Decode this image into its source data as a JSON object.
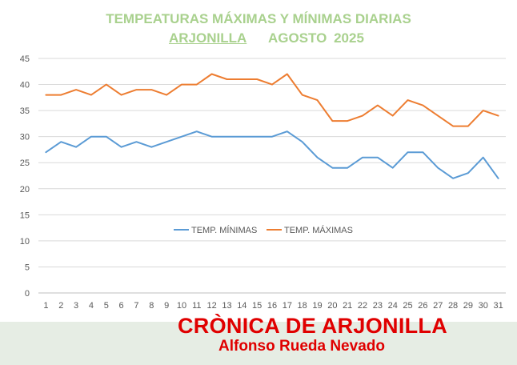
{
  "chart_data": {
    "type": "line",
    "title": "TEMPEATURAS MÁXIMAS Y MÍNIMAS DIARIAS",
    "subtitle_place": "ARJONILLA",
    "subtitle_date": "AGOSTO  2025",
    "x": [
      1,
      2,
      3,
      4,
      5,
      6,
      7,
      8,
      9,
      10,
      11,
      12,
      13,
      14,
      15,
      16,
      17,
      18,
      19,
      20,
      21,
      22,
      23,
      24,
      25,
      26,
      27,
      28,
      29,
      30,
      31
    ],
    "ylim": [
      0,
      45
    ],
    "yticks": [
      0,
      5,
      10,
      15,
      20,
      25,
      30,
      35,
      40,
      45
    ],
    "grid": true,
    "legend_position": "center",
    "series": [
      {
        "name": "TEMP. MÍNIMAS",
        "color": "#5b9bd5",
        "values": [
          27,
          29,
          28,
          30,
          30,
          28,
          29,
          28,
          29,
          30,
          31,
          30,
          30,
          30,
          30,
          30,
          31,
          29,
          26,
          24,
          24,
          26,
          26,
          24,
          27,
          27,
          24,
          22,
          23,
          26,
          22
        ]
      },
      {
        "name": "TEMP. MÁXIMAS",
        "color": "#ed7d31",
        "values": [
          38,
          38,
          39,
          38,
          40,
          38,
          39,
          39,
          38,
          40,
          40,
          42,
          41,
          41,
          41,
          40,
          42,
          38,
          37,
          33,
          33,
          34,
          36,
          34,
          37,
          36,
          34,
          32,
          32,
          35,
          34
        ]
      }
    ]
  },
  "footer": {
    "brand": "CRÒNICA DE ARJONILLA",
    "author": "Alfonso Rueda Nevado"
  }
}
